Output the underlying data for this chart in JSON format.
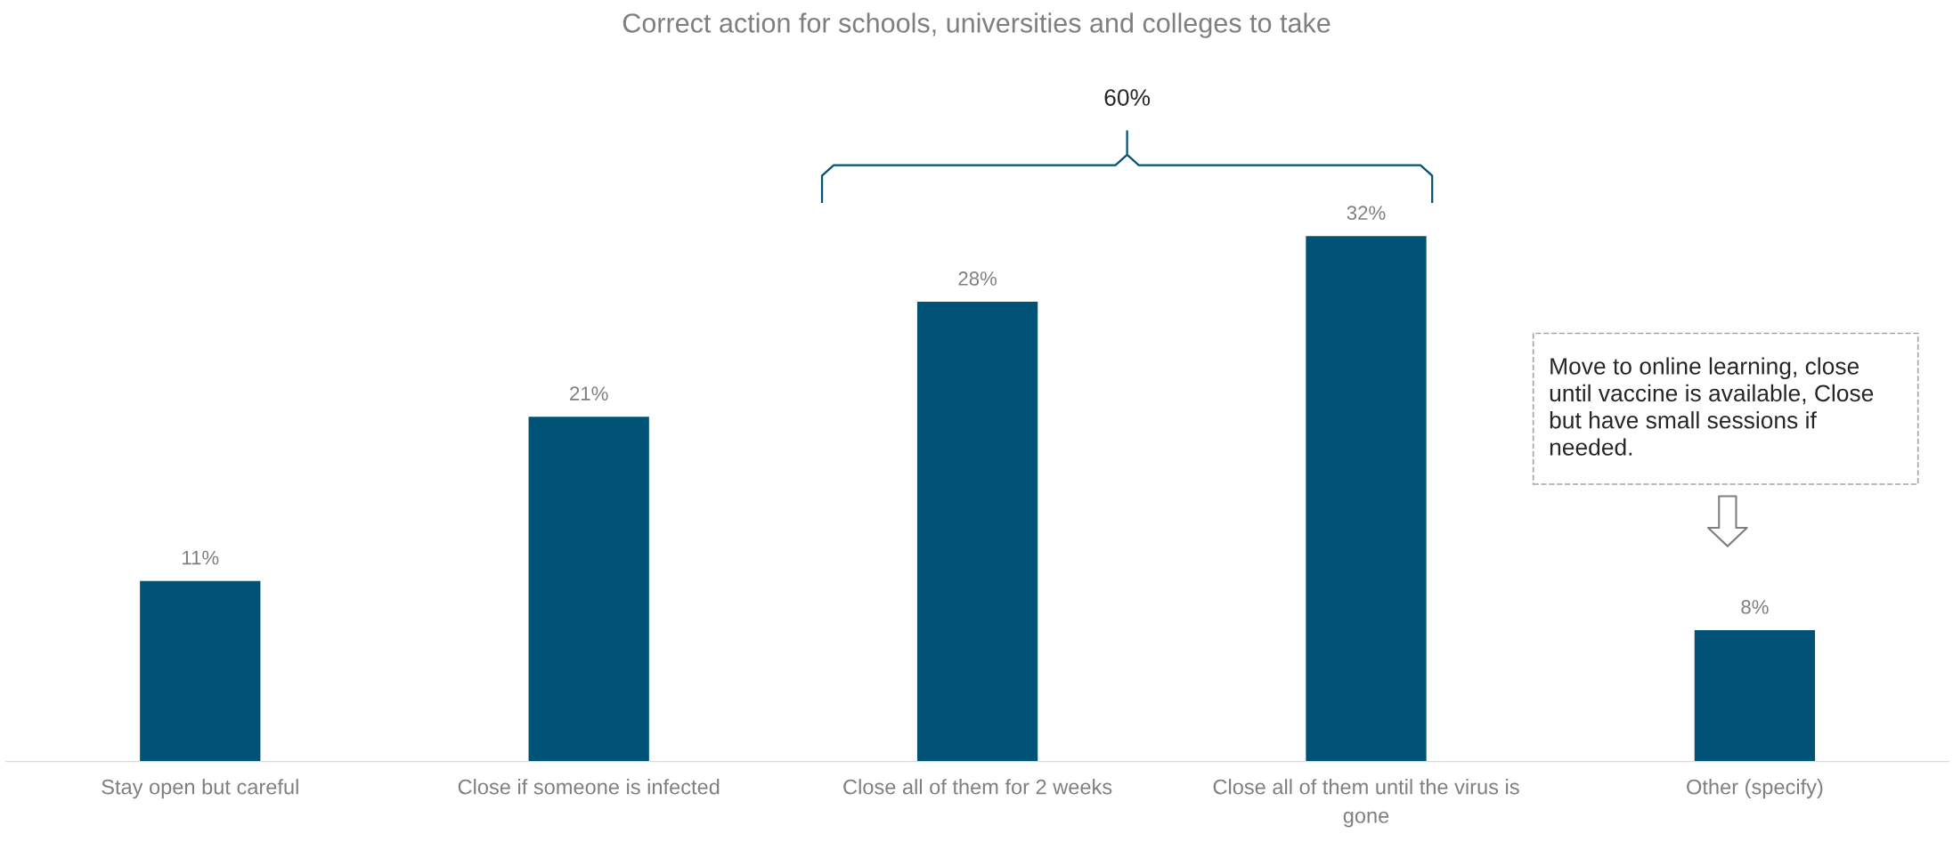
{
  "chart_data": {
    "type": "bar",
    "title": "Correct action for schools, universities and colleges to take",
    "categories": [
      "Stay open but careful",
      "Close if someone is infected",
      "Close all of them for 2 weeks",
      "Close all of them until the virus is gone",
      "Other (specify)"
    ],
    "values": [
      11,
      21,
      28,
      32,
      8
    ],
    "value_labels": [
      "11%",
      "21%",
      "28%",
      "32%",
      "8%"
    ],
    "color": "#005277",
    "annotations": [
      "60%",
      "Move to online learning, close until vaccine is available, Close but have small sessions if needed."
    ],
    "grid": false,
    "legend": false
  }
}
